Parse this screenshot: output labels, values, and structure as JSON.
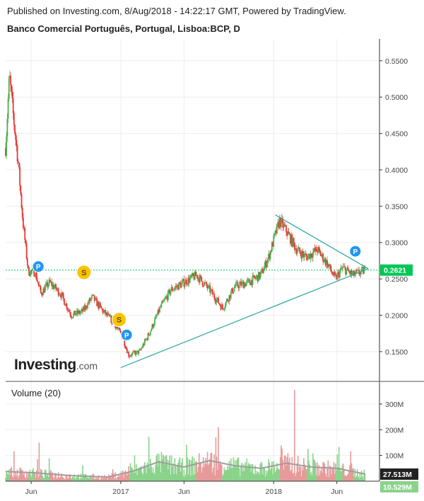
{
  "header": {
    "published": "Published on Investing.com, 8/Aug/2018 - 14:22:17 GMT, Powered by TradingView.",
    "symbol": "Banco Comercial Português, Portugal, Lisboa:BCP, D"
  },
  "logo": {
    "brand": "Investing",
    "suffix": ".com"
  },
  "colors": {
    "up": "#4caf50",
    "down": "#e53935",
    "trend": "#26a69a",
    "last_price": "#00c853",
    "volume_up": "#8bd38b",
    "volume_down": "#e79a9a",
    "volume_ma": "#9e9e9e",
    "marker_p": "#2196f3",
    "marker_s": "#f9c400"
  },
  "chart_data": {
    "type": "candlestick",
    "price_axis": {
      "ylim": [
        0.11,
        0.58
      ],
      "ticks": [
        "0.5500",
        "0.5000",
        "0.4500",
        "0.4000",
        "0.3500",
        "0.3000",
        "0.2500",
        "0.2000",
        "0.1500"
      ],
      "tick_values": [
        0.55,
        0.5,
        0.45,
        0.4,
        0.35,
        0.3,
        0.25,
        0.2,
        0.15
      ]
    },
    "x_axis": {
      "range": [
        "2016-04-01",
        "2018-08-08"
      ],
      "labels": [
        {
          "label": "Jun",
          "date": "2016-06-01"
        },
        {
          "label": "2017",
          "date": "2017-01-01"
        },
        {
          "label": "Jun",
          "date": "2017-06-01"
        },
        {
          "label": "2018",
          "date": "2018-01-01"
        },
        {
          "label": "Jun",
          "date": "2018-06-01"
        }
      ]
    },
    "price_path": [
      {
        "date": "2016-04-01",
        "price": 0.43
      },
      {
        "date": "2016-04-10",
        "price": 0.53
      },
      {
        "date": "2016-04-20",
        "price": 0.47
      },
      {
        "date": "2016-05-01",
        "price": 0.41
      },
      {
        "date": "2016-05-12",
        "price": 0.33
      },
      {
        "date": "2016-05-25",
        "price": 0.26
      },
      {
        "date": "2016-06-10",
        "price": 0.26
      },
      {
        "date": "2016-06-24",
        "price": 0.23
      },
      {
        "date": "2016-07-15",
        "price": 0.245
      },
      {
        "date": "2016-08-10",
        "price": 0.23
      },
      {
        "date": "2016-09-05",
        "price": 0.2
      },
      {
        "date": "2016-10-01",
        "price": 0.205
      },
      {
        "date": "2016-10-25",
        "price": 0.225
      },
      {
        "date": "2016-11-20",
        "price": 0.205
      },
      {
        "date": "2016-12-15",
        "price": 0.19
      },
      {
        "date": "2017-01-05",
        "price": 0.17
      },
      {
        "date": "2017-01-20",
        "price": 0.145
      },
      {
        "date": "2017-02-15",
        "price": 0.15
      },
      {
        "date": "2017-03-10",
        "price": 0.175
      },
      {
        "date": "2017-04-05",
        "price": 0.21
      },
      {
        "date": "2017-05-01",
        "price": 0.235
      },
      {
        "date": "2017-06-01",
        "price": 0.245
      },
      {
        "date": "2017-07-01",
        "price": 0.255
      },
      {
        "date": "2017-08-01",
        "price": 0.235
      },
      {
        "date": "2017-09-01",
        "price": 0.21
      },
      {
        "date": "2017-10-01",
        "price": 0.24
      },
      {
        "date": "2017-11-01",
        "price": 0.245
      },
      {
        "date": "2017-12-01",
        "price": 0.255
      },
      {
        "date": "2017-12-20",
        "price": 0.28
      },
      {
        "date": "2018-01-15",
        "price": 0.33
      },
      {
        "date": "2018-02-01",
        "price": 0.315
      },
      {
        "date": "2018-02-25",
        "price": 0.29
      },
      {
        "date": "2018-03-20",
        "price": 0.28
      },
      {
        "date": "2018-04-15",
        "price": 0.29
      },
      {
        "date": "2018-05-10",
        "price": 0.27
      },
      {
        "date": "2018-05-28",
        "price": 0.25
      },
      {
        "date": "2018-06-15",
        "price": 0.265
      },
      {
        "date": "2018-07-10",
        "price": 0.255
      },
      {
        "date": "2018-08-08",
        "price": 0.2621
      }
    ],
    "trendlines": [
      {
        "from": {
          "date": "2017-01-01",
          "price": 0.128
        },
        "to": {
          "date": "2018-08-15",
          "price": 0.264
        }
      },
      {
        "from": {
          "date": "2018-01-05",
          "price": 0.338
        },
        "to": {
          "date": "2018-08-15",
          "price": 0.264
        }
      }
    ],
    "last_price": {
      "value": 0.2621,
      "label": "0.2621"
    },
    "markers": [
      {
        "type": "P",
        "date": "2016-06-18",
        "price": 0.267
      },
      {
        "type": "S",
        "date": "2016-10-05",
        "price": 0.259
      },
      {
        "type": "S",
        "date": "2016-12-28",
        "price": 0.194
      },
      {
        "type": "P",
        "date": "2017-01-15",
        "price": 0.173
      },
      {
        "type": "P",
        "date": "2018-07-15",
        "price": 0.288
      }
    ],
    "volume": {
      "title": "Volume (20)",
      "ylim": [
        0,
        385
      ],
      "unit": "M",
      "ticks": [
        "300M",
        "200M",
        "100M"
      ],
      "tick_values": [
        300,
        200,
        100
      ],
      "last_volume": {
        "value": 10.529,
        "label": "10.529M"
      },
      "moving_average": {
        "value": 27.513,
        "label": "27.513M"
      },
      "ma_path": [
        {
          "date": "2016-04-01",
          "value": 38
        },
        {
          "date": "2016-06-15",
          "value": 32
        },
        {
          "date": "2016-09-01",
          "value": 22
        },
        {
          "date": "2016-12-01",
          "value": 16
        },
        {
          "date": "2017-02-01",
          "value": 40
        },
        {
          "date": "2017-04-01",
          "value": 75
        },
        {
          "date": "2017-06-01",
          "value": 55
        },
        {
          "date": "2017-08-01",
          "value": 80
        },
        {
          "date": "2017-10-01",
          "value": 60
        },
        {
          "date": "2017-12-01",
          "value": 50
        },
        {
          "date": "2018-02-01",
          "value": 70
        },
        {
          "date": "2018-04-01",
          "value": 55
        },
        {
          "date": "2018-06-01",
          "value": 50
        },
        {
          "date": "2018-08-08",
          "value": 27.5
        }
      ],
      "spikes": [
        {
          "date": "2017-02-10",
          "value": 300
        },
        {
          "date": "2018-02-20",
          "value": 355
        },
        {
          "date": "2018-01-20",
          "value": 220
        },
        {
          "date": "2017-07-10",
          "value": 215
        },
        {
          "date": "2018-05-20",
          "value": 175
        },
        {
          "date": "2017-11-01",
          "value": 160
        },
        {
          "date": "2016-06-20",
          "value": 150
        }
      ]
    }
  }
}
